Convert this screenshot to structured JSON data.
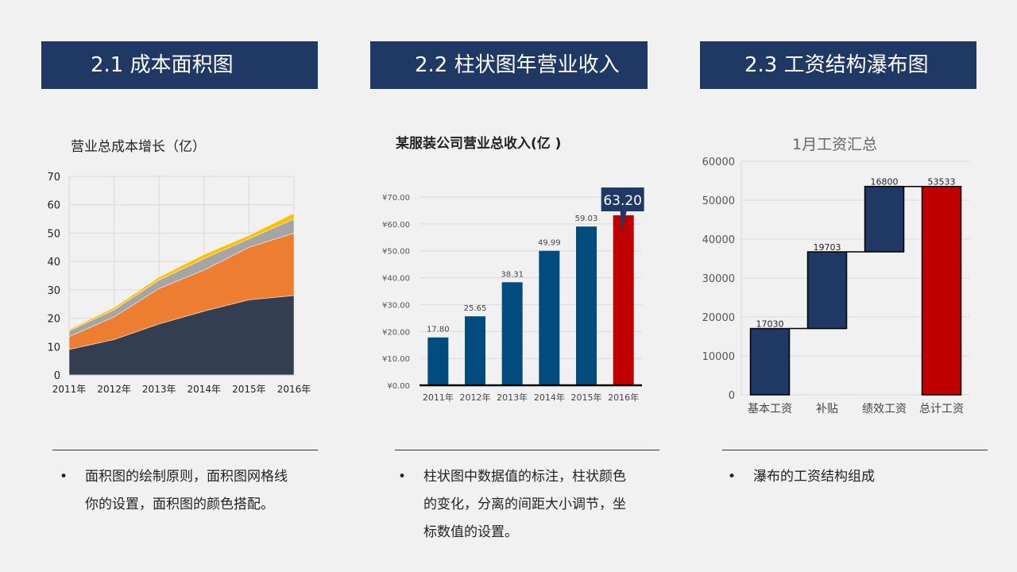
{
  "colors": {
    "header_bg": "#1f3864",
    "area_series": [
      "#333f50",
      "#ed7d31",
      "#a5a5a5",
      "#ffc000"
    ],
    "bar_normal": "#004c7f",
    "bar_highlight": "#c00000",
    "waterfall_increase": "#1f3864",
    "waterfall_total": "#c00000"
  },
  "sections": [
    {
      "header": "2.1 成本面积图",
      "chart_title": "营业总成本增长（亿）",
      "bullet_lines": [
        "面积图的绘制原则，面积图网格线",
        "你的设置，面积图的颜色搭配。"
      ]
    },
    {
      "header": "2.2 柱状图年营业收入",
      "chart_title": "某服装公司营业总收入(亿 )",
      "callout": "63.20",
      "bullet_lines": [
        "柱状图中数据值的标注，柱状颜色",
        "的变化，分离的间距大小调节，坐",
        "标数值的设置。"
      ]
    },
    {
      "header": "2.3 工资结构瀑布图",
      "chart_title": "1月工资汇总",
      "bullet_lines": [
        "瀑布的工资结构组成"
      ]
    }
  ],
  "bullet_symbol": "•",
  "chart_data": [
    {
      "type": "area",
      "stacked": true,
      "title": "营业总成本增长（亿）",
      "categories": [
        "2011年",
        "2012年",
        "2013年",
        "2014年",
        "2015年",
        "2016年"
      ],
      "series": [
        {
          "values": [
            9,
            12.5,
            18,
            22.5,
            26.5,
            28
          ]
        },
        {
          "values": [
            4.5,
            8,
            12.5,
            14.5,
            18.5,
            22
          ]
        },
        {
          "values": [
            2,
            2.5,
            3,
            4,
            3,
            5
          ]
        },
        {
          "values": [
            0.5,
            0.8,
            1,
            1.5,
            1.2,
            2
          ]
        }
      ],
      "ylim": [
        0,
        70
      ],
      "yticks": [
        "0",
        "10",
        "20",
        "30",
        "40",
        "50",
        "60",
        "70"
      ],
      "grid": true
    },
    {
      "type": "bar",
      "title": "某服装公司营业总收入(亿 )",
      "categories": [
        "2011年",
        "2012年",
        "2013年",
        "2014年",
        "2015年",
        "2016年"
      ],
      "values": [
        17.8,
        25.65,
        38.31,
        49.99,
        59.03,
        63.2
      ],
      "data_labels": [
        "17.80",
        "25.65",
        "38.31",
        "49.99",
        "59.03",
        ""
      ],
      "ylim": [
        0,
        70
      ],
      "yticks": [
        "¥0.00",
        "¥10.00",
        "¥20.00",
        "¥30.00",
        "¥40.00",
        "¥50.00",
        "¥60.00",
        "¥70.00"
      ],
      "highlight_index": 5,
      "grid": true
    },
    {
      "type": "waterfall",
      "title": "1月工资汇总",
      "categories": [
        "基本工资",
        "补贴",
        "绩效工资",
        "总计工资"
      ],
      "values": [
        17030,
        19703,
        16800,
        53533
      ],
      "data_labels": [
        "17030",
        "19703",
        "16800",
        "53533"
      ],
      "is_total": [
        false,
        false,
        false,
        true
      ],
      "ylim": [
        0,
        60000
      ],
      "yticks": [
        "0",
        "10000",
        "20000",
        "30000",
        "40000",
        "50000",
        "60000"
      ],
      "grid": true
    }
  ]
}
